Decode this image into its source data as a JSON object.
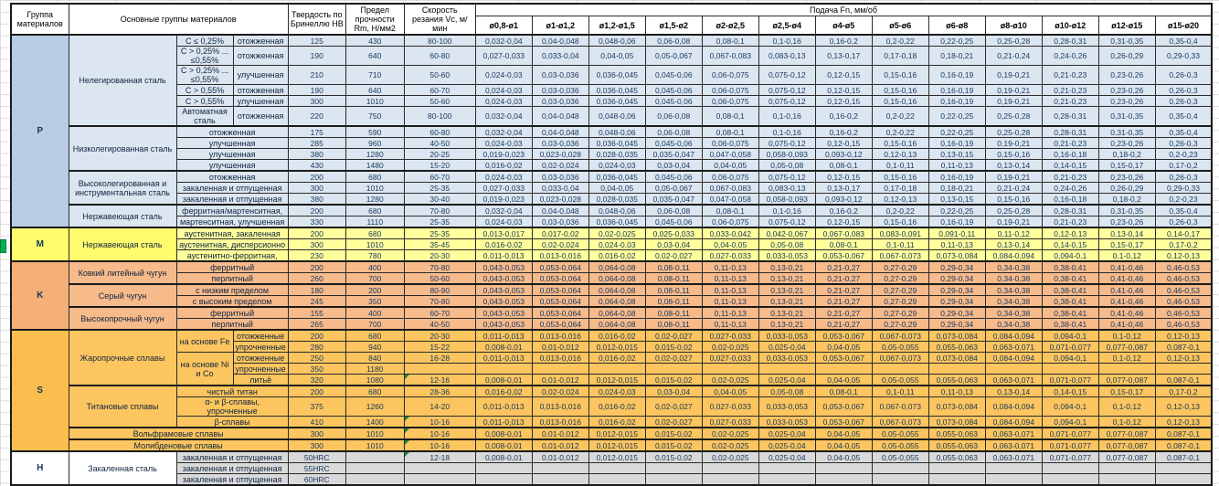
{
  "header": {
    "group": "Группа материалов",
    "main_groups": "Основные группы материалов",
    "hardness": "Твердость по Бринеллю НВ",
    "strength": "Предел прочности Rm, Н/мм2",
    "speed": "Скорость резания Vc, м/мин",
    "feed": "Подача Fn, мм/об",
    "diameters": [
      "ø0,8-ø1",
      "ø1-ø1,2",
      "ø1,2-ø1,5",
      "ø1,5-ø2",
      "ø2-ø2,5",
      "ø2,5-ø4",
      "ø4-ø5",
      "ø5-ø6",
      "ø6-ø8",
      "ø8-ø10",
      "ø10-ø12",
      "ø12-ø15",
      "ø15-ø20"
    ]
  },
  "colors": {
    "p_group": "#B8CCE4",
    "p_body": "#DCE6F1",
    "m_body": "#FFFF9C",
    "k_body": "#F7BA8B",
    "s_body": "#FCC55F",
    "h_body": "#D9D9D9",
    "comment_triangle": "#1e8a3c",
    "selection_marker": "#00B050"
  },
  "feed_sets": {
    "A": [
      "0,032-0,04",
      "0,04-0,048",
      "0,048-0,06",
      "0,06-0,08",
      "0,08-0,1",
      "0,1-0,16",
      "0,16-0,2",
      "0,2-0,22",
      "0,22-0,25",
      "0,25-0,28",
      "0,28-0,31",
      "0,31-0,35",
      "0,35-0,4"
    ],
    "B": [
      "0,027-0,033",
      "0,033-0,04",
      "0,04-0,05",
      "0,05-0,067",
      "0,067-0,083",
      "0,083-0,13",
      "0,13-0,17",
      "0,17-0,18",
      "0,18-0,21",
      "0,21-0,24",
      "0,24-0,26",
      "0,26-0,29",
      "0,29-0,33"
    ],
    "C": [
      "0,024-0,03",
      "0,03-0,036",
      "0,036-0,045",
      "0,045-0,06",
      "0,06-0,075",
      "0,075-0,12",
      "0,12-0,15",
      "0,15-0,16",
      "0,16-0,19",
      "0,19-0,21",
      "0,21-0,23",
      "0,23-0,26",
      "0,26-0,3"
    ],
    "D": [
      "0,019-0,023",
      "0,023-0,028",
      "0,028-0,035",
      "0,035-0,047",
      "0,047-0,058",
      "0,058-0,093",
      "0,093-0,12",
      "0,12-0,13",
      "0,13-0,15",
      "0,15-0,16",
      "0,16-0,18",
      "0,18-0,2",
      "0,2-0,23"
    ],
    "E": [
      "0,016-0,02",
      "0,02-0,024",
      "0,024-0,03",
      "0,03-0,04",
      "0,04-0,05",
      "0,05-0,08",
      "0,08-0,1",
      "0,1-0,11",
      "0,11-0,13",
      "0,13-0,14",
      "0,14-0,15",
      "0,15-0,17",
      "0,17-0,2"
    ],
    "F": [
      "0,013-0,017",
      "0,017-0,02",
      "0,02-0,025",
      "0,025-0,033",
      "0,033-0,042",
      "0,042-0,067",
      "0,067-0,083",
      "0,083-0,091",
      "0,091-0,11",
      "0,11-0,12",
      "0,12-0,13",
      "0,13-0,14",
      "0,14-0,17"
    ],
    "G": [
      "0,011-0,013",
      "0,013-0,016",
      "0,016-0,02",
      "0,02-0,027",
      "0,027-0,033",
      "0,033-0,053",
      "0,053-0,067",
      "0,067-0,073",
      "0,073-0,084",
      "0,084-0,094",
      "0,094-0,1",
      "0,1-0,12",
      "0,12-0,13"
    ],
    "K": [
      "0,043-0,053",
      "0,053-0,064",
      "0,064-0,08",
      "0,08-0,11",
      "0,11-0,13",
      "0,13-0,21",
      "0,21-0,27",
      "0,27-0,29",
      "0,29-0,34",
      "0,34-0,38",
      "0,38-0,41",
      "0,41-0,46",
      "0,46-0,53"
    ],
    "H8": [
      "0,008-0,01",
      "0,01-0,012",
      "0,012-0,015",
      "0,015-0,02",
      "0,02-0,025",
      "0,025-0,04",
      "0,04-0,05",
      "0,05-0,055",
      "0,055-0,063",
      "0,063-0,071",
      "0,071-0,077",
      "0,077-0,087",
      "0,087-0,1"
    ],
    "X": [
      "",
      "",
      "",
      "",
      "",
      "",
      "",
      "",
      "",
      "",
      "",
      "",
      ""
    ]
  },
  "rows": [
    {
      "cls": "p gt",
      "feeds": "A",
      "cells": [
        {
          "t": "P",
          "rs": 15,
          "c": "grp"
        },
        {
          "t": "Нелегированная сталь",
          "rs": 6,
          "c": "fam"
        },
        {
          "t": "С ≤ 0,25%",
          "c": "sub"
        },
        {
          "t": "отожженная",
          "c": "st"
        },
        {
          "t": "125",
          "c": "num"
        },
        {
          "t": "430",
          "c": "num"
        },
        {
          "t": "80-100",
          "c": "num"
        }
      ]
    },
    {
      "cls": "p h2",
      "feeds": "B",
      "cells": [
        {
          "t": "С > 0,25% ...\n≤0,55%",
          "c": "sub pre"
        },
        {
          "t": "отожженная",
          "c": "st"
        },
        {
          "t": "190",
          "c": "num"
        },
        {
          "t": "640",
          "c": "num"
        },
        {
          "t": "60-80",
          "c": "num"
        }
      ]
    },
    {
      "cls": "p h2",
      "feeds": "C",
      "cells": [
        {
          "t": "С > 0,25% ...\n≤0,55%",
          "c": "sub pre"
        },
        {
          "t": "улучшенная",
          "c": "st"
        },
        {
          "t": "210",
          "c": "num"
        },
        {
          "t": "710",
          "c": "num"
        },
        {
          "t": "50-60",
          "c": "num"
        }
      ]
    },
    {
      "cls": "p",
      "feeds": "C",
      "cells": [
        {
          "t": "С > 0,55%",
          "c": "sub"
        },
        {
          "t": "отожженная",
          "c": "st"
        },
        {
          "t": "190",
          "c": "num"
        },
        {
          "t": "640",
          "c": "num"
        },
        {
          "t": "60-70",
          "c": "num"
        }
      ]
    },
    {
      "cls": "p",
      "feeds": "C",
      "cells": [
        {
          "t": "С > 0,55%",
          "c": "sub"
        },
        {
          "t": "улучшенная",
          "c": "st"
        },
        {
          "t": "300",
          "c": "num"
        },
        {
          "t": "1010",
          "c": "num"
        },
        {
          "t": "50-60",
          "c": "num"
        }
      ]
    },
    {
      "cls": "p h2",
      "feeds": "A",
      "cells": [
        {
          "t": "Автоматная сталь",
          "c": "sub"
        },
        {
          "t": "отожженная",
          "c": "st"
        },
        {
          "t": "220",
          "c": "num"
        },
        {
          "t": "750",
          "c": "num"
        },
        {
          "t": "80-100",
          "c": "num"
        }
      ]
    },
    {
      "cls": "p gt2",
      "feeds": "A",
      "cells": [
        {
          "t": "Низколегированная сталь",
          "rs": 4,
          "c": "fam"
        },
        {
          "t": "отожженная",
          "cs": 2,
          "c": "st"
        },
        {
          "t": "175",
          "c": "num"
        },
        {
          "t": "590",
          "c": "num"
        },
        {
          "t": "60-80",
          "c": "num"
        }
      ]
    },
    {
      "cls": "p",
      "feeds": "C",
      "cells": [
        {
          "t": "улучшенная",
          "cs": 2,
          "c": "st"
        },
        {
          "t": "285",
          "c": "num"
        },
        {
          "t": "960",
          "c": "num"
        },
        {
          "t": "40-50",
          "c": "num"
        }
      ]
    },
    {
      "cls": "p",
      "feeds": "D",
      "cells": [
        {
          "t": "улучшенная",
          "cs": 2,
          "c": "st"
        },
        {
          "t": "380",
          "c": "num"
        },
        {
          "t": "1280",
          "c": "num"
        },
        {
          "t": "20-25",
          "c": "num"
        }
      ]
    },
    {
      "cls": "p",
      "feeds": "E",
      "cells": [
        {
          "t": "улучшенная",
          "cs": 2,
          "c": "st"
        },
        {
          "t": "430",
          "c": "num"
        },
        {
          "t": "1480",
          "c": "num"
        },
        {
          "t": "15-20",
          "c": "num"
        }
      ]
    },
    {
      "cls": "p gt2",
      "feeds": "C",
      "cells": [
        {
          "t": "Высоколегированная и инструментальная сталь",
          "rs": 3,
          "c": "fam"
        },
        {
          "t": "отожженная",
          "cs": 2,
          "c": "st"
        },
        {
          "t": "200",
          "c": "num"
        },
        {
          "t": "680",
          "c": "num"
        },
        {
          "t": "60-70",
          "c": "num"
        }
      ]
    },
    {
      "cls": "p",
      "feeds": "B",
      "cells": [
        {
          "t": "закаленная и отпущенная",
          "cs": 2,
          "c": "st"
        },
        {
          "t": "300",
          "c": "num"
        },
        {
          "t": "1010",
          "c": "num"
        },
        {
          "t": "25-35",
          "c": "num"
        }
      ]
    },
    {
      "cls": "p",
      "feeds": "D",
      "cells": [
        {
          "t": "закаленная и отпущенная",
          "cs": 2,
          "c": "st"
        },
        {
          "t": "380",
          "c": "num"
        },
        {
          "t": "1280",
          "c": "num"
        },
        {
          "t": "30-40",
          "c": "num"
        }
      ]
    },
    {
      "cls": "p gt2",
      "feeds": "A",
      "cells": [
        {
          "t": "Нержавеющая сталь",
          "rs": 2,
          "c": "fam"
        },
        {
          "t": "ферритная/мартенситная,",
          "cs": 2,
          "c": "st"
        },
        {
          "t": "200",
          "c": "num"
        },
        {
          "t": "680",
          "c": "num"
        },
        {
          "t": "70-80",
          "c": "num"
        }
      ]
    },
    {
      "cls": "p",
      "feeds": "C",
      "cells": [
        {
          "t": "мартенситная, улучшенная",
          "cs": 2,
          "c": "st"
        },
        {
          "t": "330",
          "c": "num"
        },
        {
          "t": "1110",
          "c": "num"
        },
        {
          "t": "25-35",
          "c": "num"
        }
      ]
    },
    {
      "cls": "m gt",
      "feeds": "F",
      "cells": [
        {
          "t": "M",
          "rs": 3,
          "c": "grp"
        },
        {
          "t": "Нержавеющая сталь",
          "rs": 3,
          "c": "fam"
        },
        {
          "t": "аустенитная, закаленная",
          "cs": 2,
          "c": "st"
        },
        {
          "t": "200",
          "c": "num"
        },
        {
          "t": "680",
          "c": "num"
        },
        {
          "t": "25-35",
          "c": "num"
        }
      ]
    },
    {
      "cls": "m",
      "feeds": "E",
      "cells": [
        {
          "t": "аустенитная, дисперсионно",
          "cs": 2,
          "c": "st"
        },
        {
          "t": "300",
          "c": "num"
        },
        {
          "t": "1010",
          "c": "num"
        },
        {
          "t": "35-45",
          "c": "num"
        }
      ]
    },
    {
      "cls": "m",
      "feeds": "G",
      "cells": [
        {
          "t": "аустенитно-ферритная,",
          "cs": 2,
          "c": "st"
        },
        {
          "t": "230",
          "c": "num"
        },
        {
          "t": "780",
          "c": "num"
        },
        {
          "t": "20-30",
          "c": "num"
        }
      ]
    },
    {
      "cls": "k gt",
      "feeds": "K",
      "cells": [
        {
          "t": "K",
          "rs": 6,
          "c": "grp"
        },
        {
          "t": "Ковкий литейный чугун",
          "rs": 2,
          "c": "fam"
        },
        {
          "t": "ферритный",
          "cs": 2,
          "c": "st"
        },
        {
          "t": "200",
          "c": "num"
        },
        {
          "t": "400",
          "c": "num"
        },
        {
          "t": "70-80",
          "c": "num"
        }
      ]
    },
    {
      "cls": "k",
      "feeds": "K",
      "cells": [
        {
          "t": "перлитный",
          "cs": 2,
          "c": "st"
        },
        {
          "t": "260",
          "c": "num"
        },
        {
          "t": "700",
          "c": "num"
        },
        {
          "t": "50-60",
          "c": "num"
        }
      ]
    },
    {
      "cls": "k gt2",
      "feeds": "K",
      "cells": [
        {
          "t": "Серый чугун",
          "rs": 2,
          "c": "fam"
        },
        {
          "t": "с низким пределом",
          "cs": 2,
          "c": "st"
        },
        {
          "t": "180",
          "c": "num"
        },
        {
          "t": "200",
          "c": "num"
        },
        {
          "t": "80-90",
          "c": "num"
        }
      ]
    },
    {
      "cls": "k",
      "feeds": "K",
      "cells": [
        {
          "t": "с высоким пределом",
          "cs": 2,
          "c": "st"
        },
        {
          "t": "245",
          "c": "num"
        },
        {
          "t": "350",
          "c": "num"
        },
        {
          "t": "70-80",
          "c": "num"
        }
      ]
    },
    {
      "cls": "k gt2",
      "feeds": "K",
      "cells": [
        {
          "t": "Высокопрочный чугун",
          "rs": 2,
          "c": "fam"
        },
        {
          "t": "ферритный",
          "cs": 2,
          "c": "st"
        },
        {
          "t": "155",
          "c": "num"
        },
        {
          "t": "400",
          "c": "num"
        },
        {
          "t": "60-70",
          "c": "num"
        }
      ]
    },
    {
      "cls": "k",
      "feeds": "K",
      "cells": [
        {
          "t": "перлитный",
          "cs": 2,
          "c": "st"
        },
        {
          "t": "265",
          "c": "num"
        },
        {
          "t": "700",
          "c": "num"
        },
        {
          "t": "40-50",
          "c": "num"
        }
      ]
    },
    {
      "cls": "s gt",
      "feeds": "G",
      "cells": [
        {
          "t": "S",
          "rs": 10,
          "c": "grp"
        },
        {
          "t": "Жаропрочные сплавы",
          "rs": 5,
          "c": "fam"
        },
        {
          "t": "на основе Fe",
          "rs": 2,
          "c": "sub"
        },
        {
          "t": "отожженные",
          "c": "st"
        },
        {
          "t": "200",
          "c": "num"
        },
        {
          "t": "680",
          "c": "num"
        },
        {
          "t": "20-30",
          "c": "num"
        }
      ]
    },
    {
      "cls": "s",
      "feeds": "H8",
      "cells": [
        {
          "t": "упрочненные",
          "c": "st"
        },
        {
          "t": "280",
          "c": "num"
        },
        {
          "t": "940",
          "c": "num"
        },
        {
          "t": "15-22",
          "c": "num"
        }
      ]
    },
    {
      "cls": "s",
      "feeds": "G",
      "cells": [
        {
          "t": "на основе Ni и Со",
          "rs": 3,
          "c": "sub"
        },
        {
          "t": "отожженные",
          "c": "st"
        },
        {
          "t": "250",
          "c": "num"
        },
        {
          "t": "840",
          "c": "num"
        },
        {
          "t": "16-28",
          "c": "num"
        }
      ]
    },
    {
      "cls": "s",
      "feeds": "X",
      "cells": [
        {
          "t": "упрочненные",
          "c": "st"
        },
        {
          "t": "350",
          "c": "num"
        },
        {
          "t": "1180",
          "c": "num"
        },
        {
          "t": "",
          "c": "num"
        }
      ]
    },
    {
      "cls": "s",
      "feeds": "H8",
      "cells": [
        {
          "t": "литьё",
          "c": "st"
        },
        {
          "t": "320",
          "c": "num"
        },
        {
          "t": "1080",
          "c": "num"
        },
        {
          "t": "12-16",
          "c": "num",
          "tri": true
        }
      ]
    },
    {
      "cls": "s gt2",
      "feeds": "E",
      "cells": [
        {
          "t": "Титановые сплавы",
          "rs": 3,
          "c": "fam"
        },
        {
          "t": "чистый титан",
          "cs": 2,
          "c": "st"
        },
        {
          "t": "200",
          "c": "num"
        },
        {
          "t": "680",
          "c": "num"
        },
        {
          "t": "28-36",
          "c": "num"
        }
      ]
    },
    {
      "cls": "s",
      "feeds": "G",
      "cells": [
        {
          "t": "α- и β-сплавы, упрочненные",
          "cs": 2,
          "c": "st"
        },
        {
          "t": "375",
          "c": "num"
        },
        {
          "t": "1260",
          "c": "num"
        },
        {
          "t": "14-20",
          "c": "num"
        }
      ]
    },
    {
      "cls": "s",
      "feeds": "G",
      "cells": [
        {
          "t": "β-сплавы",
          "cs": 2,
          "c": "st"
        },
        {
          "t": "410",
          "c": "num"
        },
        {
          "t": "1400",
          "c": "num"
        },
        {
          "t": "10-16",
          "c": "num",
          "tri": true
        }
      ]
    },
    {
      "cls": "s gt2",
      "feeds": "H8",
      "cells": [
        {
          "t": "Вольфрамовые сплавы",
          "cs": 3,
          "c": "fam"
        },
        {
          "t": "300",
          "c": "num"
        },
        {
          "t": "1010",
          "c": "num"
        },
        {
          "t": "10-16",
          "c": "num",
          "tri": true
        }
      ]
    },
    {
      "cls": "s gt2",
      "feeds": "H8",
      "cells": [
        {
          "t": "Молибденовые сплавы",
          "cs": 3,
          "c": "fam"
        },
        {
          "t": "300",
          "c": "num"
        },
        {
          "t": "1010",
          "c": "num"
        },
        {
          "t": "10-16",
          "c": "num",
          "tri": true
        }
      ]
    },
    {
      "cls": "h gt",
      "feeds": "H8",
      "cells": [
        {
          "t": "H",
          "rs": 3,
          "c": "grp wh"
        },
        {
          "t": "Закаленная сталь",
          "rs": 3,
          "c": "fam wh"
        },
        {
          "t": "закаленная и отпущенная",
          "cs": 2,
          "c": "st"
        },
        {
          "t": "50HRC",
          "c": "num"
        },
        {
          "t": "",
          "c": "num"
        },
        {
          "t": "12-18",
          "c": "num",
          "tri": true
        }
      ]
    },
    {
      "cls": "h",
      "feeds": "X",
      "cells": [
        {
          "t": "закаленная и отпущенная",
          "cs": 2,
          "c": "st"
        },
        {
          "t": "55HRC",
          "c": "num"
        },
        {
          "t": "",
          "c": "num"
        },
        {
          "t": "",
          "c": "num"
        }
      ]
    },
    {
      "cls": "h",
      "feeds": "X",
      "cells": [
        {
          "t": "закаленная и отпущенная",
          "cs": 2,
          "c": "st"
        },
        {
          "t": "60HRC",
          "c": "num"
        },
        {
          "t": "",
          "c": "num"
        },
        {
          "t": "",
          "c": "num"
        }
      ]
    }
  ]
}
